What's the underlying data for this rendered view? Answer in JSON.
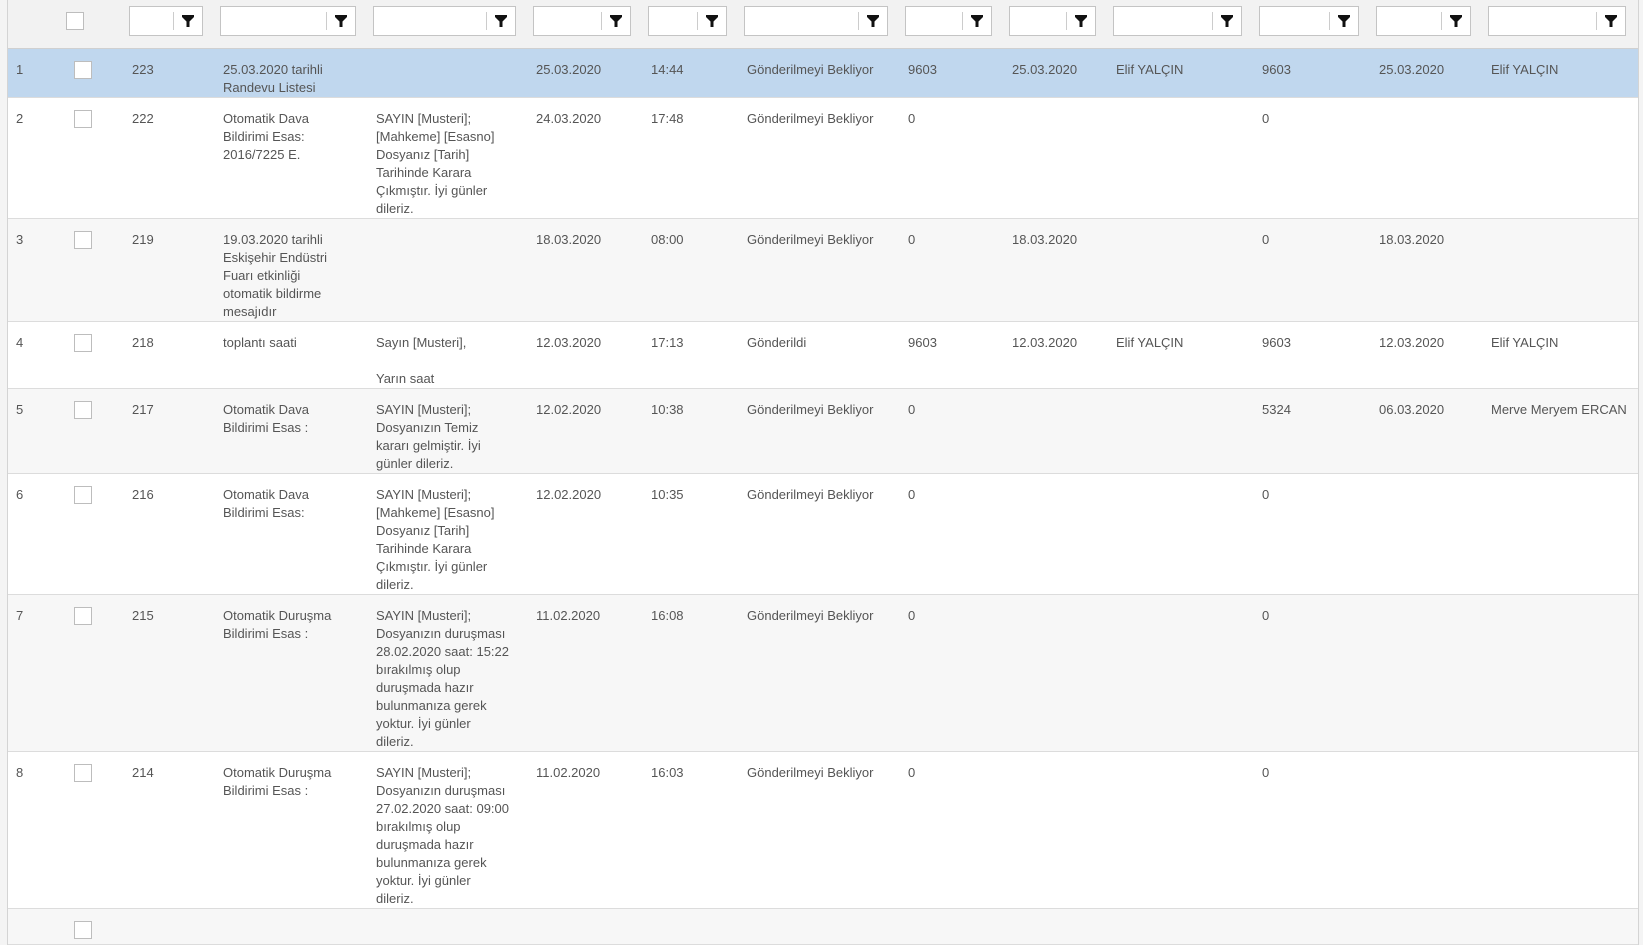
{
  "grid": {
    "colors": {
      "selected_row": "#c0d7ee",
      "alt_row": "#f7f7f7",
      "text": "#555555"
    },
    "filter_icon": "filter-funnel-icon",
    "rows": [
      {
        "n": "1",
        "id": "223",
        "subject": "25.03.2020 tarihli\nRandevu Listesi",
        "message": "",
        "date": "25.03.2020",
        "time": "14:44",
        "status": "Gönderilmeyi Bekliyor",
        "c1": "9603",
        "date2": "25.03.2020",
        "user": "Elif YALÇIN",
        "c2": "9603",
        "date3": "25.03.2020",
        "user2": "Elif YALÇIN",
        "selected": true
      },
      {
        "n": "2",
        "id": "222",
        "subject": "Otomatik Dava\nBildirimi Esas:\n2016/7225 E.",
        "message": "SAYIN [Musteri];\n[Mahkeme] [Esasno]\nDosyanız [Tarih]\nTarihinde Karara\nÇıkmıştır. İyi günler\ndileriz.",
        "date": "24.03.2020",
        "time": "17:48",
        "status": "Gönderilmeyi Bekliyor",
        "c1": "0",
        "date2": "",
        "user": "",
        "c2": "0",
        "date3": "",
        "user2": ""
      },
      {
        "n": "3",
        "id": "219",
        "subject": "19.03.2020 tarihli\nEskişehir Endüstri\nFuarı etkinliği\notomatik bildirme\nmesajıdır",
        "message": "",
        "date": "18.03.2020",
        "time": "08:00",
        "status": "Gönderilmeyi Bekliyor",
        "c1": "0",
        "date2": "18.03.2020",
        "user": "",
        "c2": "0",
        "date3": "18.03.2020",
        "user2": ""
      },
      {
        "n": "4",
        "id": "218",
        "subject": "toplantı saati",
        "message": "Sayın [Musteri],\n\nYarın saat",
        "date": "12.03.2020",
        "time": "17:13",
        "status": "Gönderildi",
        "c1": "9603",
        "date2": "12.03.2020",
        "user": "Elif YALÇIN",
        "c2": "9603",
        "date3": "12.03.2020",
        "user2": "Elif YALÇIN"
      },
      {
        "n": "5",
        "id": "217",
        "subject": "Otomatik Dava\nBildirimi Esas :",
        "message": "SAYIN [Musteri];\nDosyanızın Temiz\nkararı gelmiştir. İyi\ngünler dileriz.",
        "date": "12.02.2020",
        "time": "10:38",
        "status": "Gönderilmeyi Bekliyor",
        "c1": "0",
        "date2": "",
        "user": "",
        "c2": "5324",
        "date3": "06.03.2020",
        "user2": "Merve Meryem ERCAN"
      },
      {
        "n": "6",
        "id": "216",
        "subject": "Otomatik Dava\nBildirimi Esas:",
        "message": "SAYIN [Musteri];\n[Mahkeme] [Esasno]\nDosyanız [Tarih]\nTarihinde Karara\nÇıkmıştır. İyi günler\ndileriz.",
        "date": "12.02.2020",
        "time": "10:35",
        "status": "Gönderilmeyi Bekliyor",
        "c1": "0",
        "date2": "",
        "user": "",
        "c2": "0",
        "date3": "",
        "user2": ""
      },
      {
        "n": "7",
        "id": "215",
        "subject": "Otomatik Duruşma\nBildirimi Esas :",
        "message": "SAYIN [Musteri];\nDosyanızın duruşması\n28.02.2020 saat: 15:22\nbırakılmış olup\nduruşmada hazır\nbulunmanıza gerek\nyoktur. İyi günler\ndileriz.",
        "date": "11.02.2020",
        "time": "16:08",
        "status": "Gönderilmeyi Bekliyor",
        "c1": "0",
        "date2": "",
        "user": "",
        "c2": "0",
        "date3": "",
        "user2": ""
      },
      {
        "n": "8",
        "id": "214",
        "subject": "Otomatik Duruşma\nBildirimi Esas :",
        "message": "SAYIN [Musteri];\nDosyanızın duruşması\n27.02.2020 saat: 09:00\nbırakılmış olup\nduruşmada hazır\nbulunmanıza gerek\nyoktur. İyi günler\ndileriz.",
        "date": "11.02.2020",
        "time": "16:03",
        "status": "Gönderilmeyi Bekliyor",
        "c1": "0",
        "date2": "",
        "user": "",
        "c2": "0",
        "date3": "",
        "user2": ""
      },
      {
        "n": "",
        "id": "",
        "subject": "",
        "message": "",
        "date": "",
        "time": "",
        "status": "",
        "c1": "",
        "date2": "",
        "user": "",
        "c2": "",
        "date3": "",
        "user2": ""
      }
    ]
  }
}
